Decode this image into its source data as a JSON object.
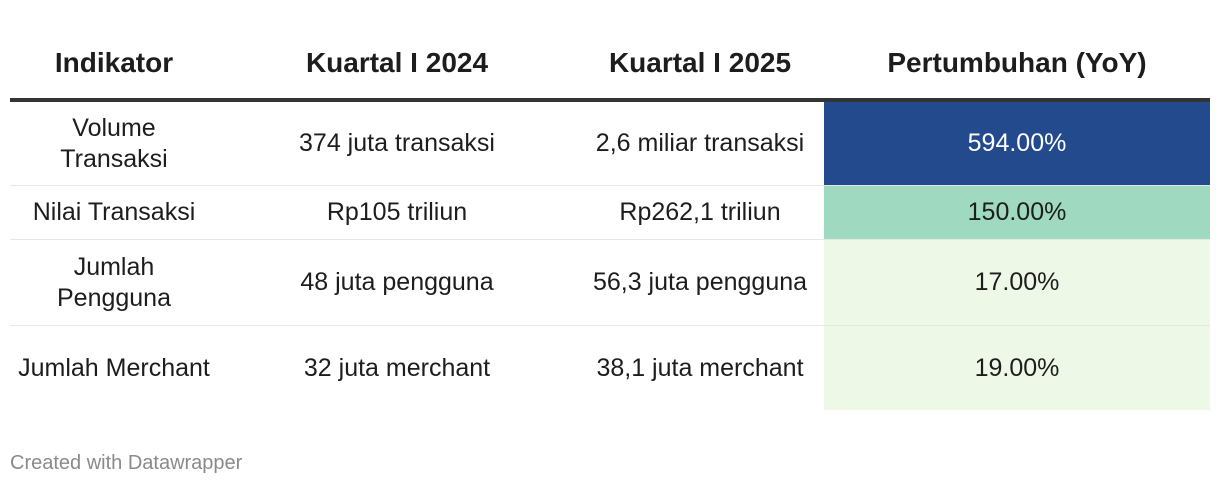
{
  "chart_data": {
    "type": "table",
    "columns": [
      "Indikator",
      "Kuartal I 2024",
      "Kuartal I 2025",
      "Pertumbuhan (YoY)"
    ],
    "rows": [
      {
        "indikator": "Volume Transaksi",
        "q1_2024": "374 juta transaksi",
        "q1_2025": "2,6 miliar transaksi",
        "growth": "594.00%",
        "growth_value": 594,
        "growth_color": "#244a8e",
        "growth_text_color": "#ffffff"
      },
      {
        "indikator": "Nilai Transaksi",
        "q1_2024": "Rp105 triliun",
        "q1_2025": "Rp262,1 triliun",
        "growth": "150.00%",
        "growth_value": 150,
        "growth_color": "#9fdac0",
        "growth_text_color": "#1d1d1d"
      },
      {
        "indikator": "Jumlah Pengguna",
        "q1_2024": "48 juta pengguna",
        "q1_2025": "56,3 juta pengguna",
        "growth": "17.00%",
        "growth_value": 17,
        "growth_color": "#eef8e6",
        "growth_text_color": "#1d1d1d"
      },
      {
        "indikator": "Jumlah Merchant",
        "q1_2024": "32 juta merchant",
        "q1_2025": "38,1 juta merchant",
        "growth": "19.00%",
        "growth_value": 19,
        "growth_color": "#eef8e6",
        "growth_text_color": "#1d1d1d"
      }
    ]
  },
  "footer": "Created with Datawrapper"
}
